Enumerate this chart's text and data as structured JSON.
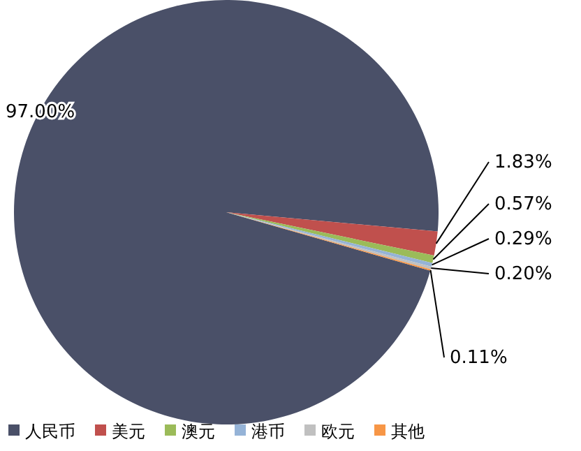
{
  "chart_data": {
    "type": "pie",
    "categories": [
      "人民币",
      "美元",
      "澳元",
      "港币",
      "欧元",
      "其他"
    ],
    "values": [
      97.0,
      1.83,
      0.57,
      0.29,
      0.2,
      0.11
    ],
    "value_labels": [
      "97.00%",
      "1.83%",
      "0.57%",
      "0.29%",
      "0.20%",
      "0.11%"
    ],
    "colors": [
      "#4a5068",
      "#c0504d",
      "#9bbb59",
      "#95b3d7",
      "#c0c0c0",
      "#f79646"
    ],
    "legend": "bottom"
  }
}
